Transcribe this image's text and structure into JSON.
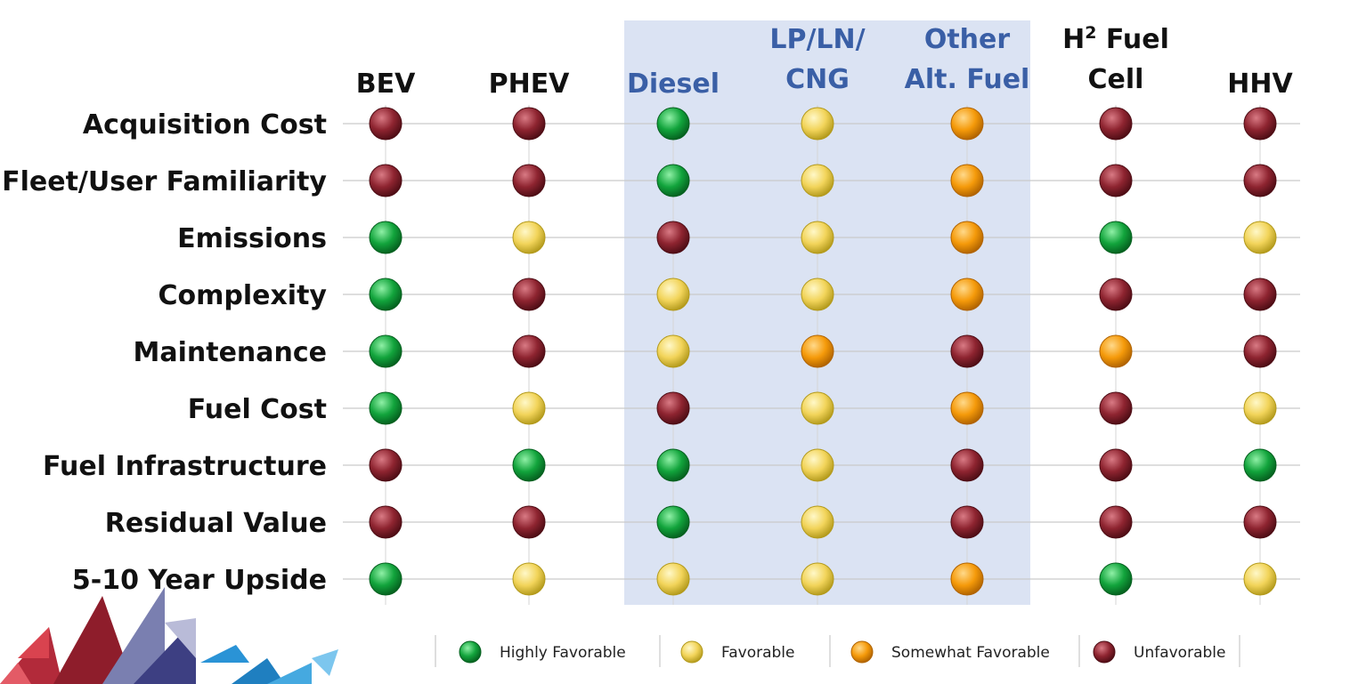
{
  "chart_data": {
    "type": "table",
    "columns": [
      {
        "label_lines": [
          "BEV"
        ],
        "highlighted": false
      },
      {
        "label_lines": [
          "PHEV"
        ],
        "highlighted": false
      },
      {
        "label_lines": [
          "Diesel"
        ],
        "highlighted": true
      },
      {
        "label_lines": [
          "LP/LN/",
          "CNG"
        ],
        "highlighted": true
      },
      {
        "label_lines": [
          "Other",
          "Alt. Fuel"
        ],
        "highlighted": true
      },
      {
        "label_lines": [
          "H",
          "Fuel",
          "Cell"
        ],
        "superscript": "2",
        "highlighted": false
      },
      {
        "label_lines": [
          "HHV"
        ],
        "highlighted": false
      }
    ],
    "rows": [
      {
        "label": "Acquisition Cost",
        "ratings": [
          "unfavorable",
          "unfavorable",
          "highly_favorable",
          "favorable",
          "somewhat_favorable",
          "unfavorable",
          "unfavorable"
        ]
      },
      {
        "label": "Fleet/User Familiarity",
        "ratings": [
          "unfavorable",
          "unfavorable",
          "highly_favorable",
          "favorable",
          "somewhat_favorable",
          "unfavorable",
          "unfavorable"
        ]
      },
      {
        "label": "Emissions",
        "ratings": [
          "highly_favorable",
          "favorable",
          "unfavorable",
          "favorable",
          "somewhat_favorable",
          "highly_favorable",
          "favorable"
        ]
      },
      {
        "label": "Complexity",
        "ratings": [
          "highly_favorable",
          "unfavorable",
          "favorable",
          "favorable",
          "somewhat_favorable",
          "unfavorable",
          "unfavorable"
        ]
      },
      {
        "label": "Maintenance",
        "ratings": [
          "highly_favorable",
          "unfavorable",
          "favorable",
          "somewhat_favorable",
          "unfavorable",
          "somewhat_favorable",
          "unfavorable"
        ]
      },
      {
        "label": "Fuel Cost",
        "ratings": [
          "highly_favorable",
          "favorable",
          "unfavorable",
          "favorable",
          "somewhat_favorable",
          "unfavorable",
          "favorable"
        ]
      },
      {
        "label": "Fuel Infrastructure",
        "ratings": [
          "unfavorable",
          "highly_favorable",
          "highly_favorable",
          "favorable",
          "unfavorable",
          "unfavorable",
          "highly_favorable"
        ]
      },
      {
        "label": "Residual Value",
        "ratings": [
          "unfavorable",
          "unfavorable",
          "highly_favorable",
          "favorable",
          "unfavorable",
          "unfavorable",
          "unfavorable"
        ]
      },
      {
        "label": "5-10 Year Upside",
        "ratings": [
          "highly_favorable",
          "favorable",
          "favorable",
          "favorable",
          "somewhat_favorable",
          "highly_favorable",
          "favorable"
        ]
      }
    ],
    "legend": [
      {
        "key": "highly_favorable",
        "label": "Highly Favorable"
      },
      {
        "key": "favorable",
        "label": "Favorable"
      },
      {
        "key": "somewhat_favorable",
        "label": "Somewhat Favorable"
      },
      {
        "key": "unfavorable",
        "label": "Unfavorable"
      }
    ],
    "rating_colors": {
      "highly_favorable": {
        "base": "#12a43c",
        "light": "#8ff0a6",
        "dark": "#05601f"
      },
      "favorable": {
        "base": "#f2d45a",
        "light": "#fff8c8",
        "dark": "#b39a1c"
      },
      "somewhat_favorable": {
        "base": "#f59a0a",
        "light": "#ffd98a",
        "dark": "#b06300"
      },
      "unfavorable": {
        "base": "#8e2430",
        "light": "#d97a84",
        "dark": "#4e0d15"
      }
    },
    "highlight_color": "#dbe3f3",
    "highlight_label_color": "#3a5fa6",
    "label_color": "#111111"
  }
}
